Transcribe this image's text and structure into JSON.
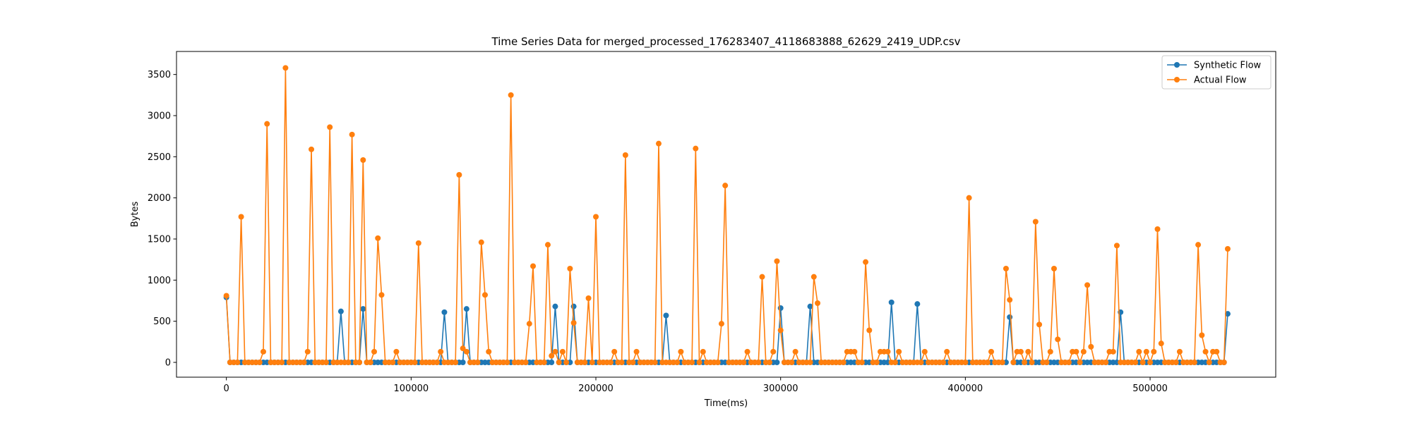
{
  "chart_data": {
    "type": "line",
    "title": "Time Series Data for merged_processed_176283407_4118683888_62629_2419_UDP.csv",
    "xlabel": "Time(ms)",
    "ylabel": "Bytes",
    "xlim": [
      -27000,
      568000
    ],
    "ylim": [
      -180,
      3780
    ],
    "xticks": [
      0,
      100000,
      200000,
      300000,
      400000,
      500000
    ],
    "xtick_labels": [
      "0",
      "100000",
      "200000",
      "300000",
      "400000",
      "500000"
    ],
    "yticks": [
      0,
      500,
      1000,
      1500,
      2000,
      2500,
      3000,
      3500
    ],
    "ytick_labels": [
      "0",
      "500",
      "1000",
      "1500",
      "2000",
      "2500",
      "3000",
      "3500"
    ],
    "grid": false,
    "legend_position": "top-right",
    "background": "#ffffff",
    "series": [
      {
        "name": "Synthetic Flow",
        "color": "#1f77b4",
        "marker": "circle",
        "spikes": [
          [
            0,
            790
          ],
          [
            62000,
            620
          ],
          [
            74000,
            650
          ],
          [
            118000,
            610
          ],
          [
            130000,
            650
          ],
          [
            178000,
            680
          ],
          [
            188000,
            680
          ],
          [
            238000,
            570
          ],
          [
            300000,
            660
          ],
          [
            316000,
            680
          ],
          [
            360000,
            730
          ],
          [
            374000,
            710
          ],
          [
            424000,
            550
          ],
          [
            484000,
            610
          ],
          [
            542000,
            590
          ]
        ],
        "baseline_x_start": 2000,
        "baseline_x_end": 540000,
        "baseline_step": 2000,
        "baseline_value": 0
      },
      {
        "name": "Actual Flow",
        "color": "#ff7f0e",
        "marker": "circle",
        "spikes": [
          [
            0,
            810
          ],
          [
            8000,
            1770
          ],
          [
            20000,
            130
          ],
          [
            22000,
            2900
          ],
          [
            32000,
            3580
          ],
          [
            44000,
            130
          ],
          [
            46000,
            2590
          ],
          [
            56000,
            2860
          ],
          [
            68000,
            2770
          ],
          [
            74000,
            2460
          ],
          [
            80000,
            130
          ],
          [
            82000,
            1510
          ],
          [
            84000,
            820
          ],
          [
            92000,
            130
          ],
          [
            104000,
            1450
          ],
          [
            116000,
            130
          ],
          [
            126000,
            2280
          ],
          [
            128000,
            170
          ],
          [
            130000,
            130
          ],
          [
            138000,
            1460
          ],
          [
            140000,
            820
          ],
          [
            142000,
            130
          ],
          [
            154000,
            3250
          ],
          [
            164000,
            470
          ],
          [
            166000,
            1170
          ],
          [
            174000,
            1430
          ],
          [
            176000,
            80
          ],
          [
            178000,
            130
          ],
          [
            182000,
            130
          ],
          [
            186000,
            1140
          ],
          [
            188000,
            480
          ],
          [
            196000,
            780
          ],
          [
            200000,
            1770
          ],
          [
            210000,
            130
          ],
          [
            216000,
            2520
          ],
          [
            222000,
            130
          ],
          [
            234000,
            2660
          ],
          [
            246000,
            130
          ],
          [
            254000,
            2600
          ],
          [
            258000,
            130
          ],
          [
            268000,
            470
          ],
          [
            270000,
            2150
          ],
          [
            282000,
            130
          ],
          [
            290000,
            1040
          ],
          [
            296000,
            130
          ],
          [
            298000,
            1230
          ],
          [
            300000,
            390
          ],
          [
            308000,
            130
          ],
          [
            318000,
            1040
          ],
          [
            320000,
            720
          ],
          [
            336000,
            130
          ],
          [
            338000,
            130
          ],
          [
            340000,
            130
          ],
          [
            346000,
            1220
          ],
          [
            348000,
            390
          ],
          [
            354000,
            130
          ],
          [
            356000,
            130
          ],
          [
            358000,
            130
          ],
          [
            364000,
            130
          ],
          [
            378000,
            130
          ],
          [
            390000,
            130
          ],
          [
            402000,
            2000
          ],
          [
            414000,
            130
          ],
          [
            422000,
            1140
          ],
          [
            424000,
            760
          ],
          [
            428000,
            130
          ],
          [
            430000,
            130
          ],
          [
            434000,
            130
          ],
          [
            438000,
            1710
          ],
          [
            440000,
            460
          ],
          [
            446000,
            130
          ],
          [
            448000,
            1140
          ],
          [
            450000,
            280
          ],
          [
            458000,
            130
          ],
          [
            460000,
            130
          ],
          [
            464000,
            130
          ],
          [
            466000,
            940
          ],
          [
            468000,
            190
          ],
          [
            478000,
            130
          ],
          [
            480000,
            130
          ],
          [
            482000,
            1420
          ],
          [
            494000,
            130
          ],
          [
            498000,
            130
          ],
          [
            502000,
            130
          ],
          [
            504000,
            1620
          ],
          [
            506000,
            230
          ],
          [
            516000,
            130
          ],
          [
            526000,
            1430
          ],
          [
            528000,
            330
          ],
          [
            530000,
            130
          ],
          [
            534000,
            130
          ],
          [
            536000,
            130
          ],
          [
            542000,
            1380
          ]
        ],
        "baseline_x_start": 2000,
        "baseline_x_end": 540000,
        "baseline_step": 2000,
        "baseline_value": 0
      }
    ]
  }
}
